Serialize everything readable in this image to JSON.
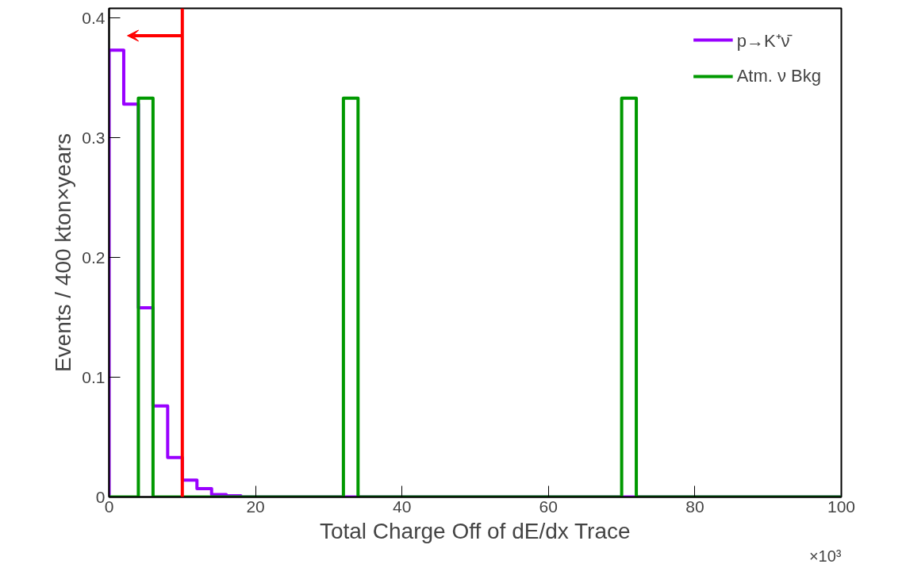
{
  "chart_data": {
    "type": "histogram",
    "xlabel": "Total Charge Off of dE/dx Trace",
    "ylabel": "Events / 400 kton×years",
    "bins": [
      0,
      2,
      4,
      6,
      8,
      10,
      12,
      14,
      16,
      18,
      20,
      22,
      24,
      26,
      28,
      30,
      32,
      34,
      36,
      38,
      40,
      42,
      44,
      46,
      48,
      50,
      52,
      54,
      56,
      58,
      60,
      62,
      64,
      66,
      68,
      70,
      72,
      74,
      76,
      78,
      80,
      82,
      84,
      86,
      88,
      90,
      92,
      94,
      96,
      98,
      100
    ],
    "series": [
      {
        "name": "p→K⁺ν̄",
        "color": "#9900ff",
        "values": [
          0.373,
          0.328,
          0.158,
          0.076,
          0.033,
          0.014,
          0.007,
          0.002,
          0.001,
          0,
          0,
          0,
          0,
          0,
          0,
          0,
          0,
          0,
          0,
          0,
          0,
          0,
          0,
          0,
          0,
          0,
          0,
          0,
          0,
          0,
          0,
          0,
          0,
          0,
          0,
          0,
          0,
          0,
          0,
          0,
          0,
          0,
          0,
          0,
          0,
          0,
          0,
          0,
          0,
          0
        ]
      },
      {
        "name": "Atm. ν Bkg",
        "color": "#009900",
        "values": [
          0,
          0,
          0.333,
          0,
          0,
          0,
          0,
          0,
          0,
          0,
          0,
          0,
          0,
          0,
          0,
          0,
          0.333,
          0,
          0,
          0,
          0,
          0,
          0,
          0,
          0,
          0,
          0,
          0,
          0,
          0,
          0,
          0,
          0,
          0,
          0,
          0.333,
          0,
          0,
          0,
          0,
          0,
          0,
          0,
          0,
          0,
          0,
          0,
          0,
          0,
          0
        ]
      }
    ],
    "xlim": [
      0,
      100
    ],
    "xticks": [
      0,
      20,
      40,
      60,
      80,
      100
    ],
    "ylim": [
      0,
      0.408
    ],
    "yticks": [
      0,
      0.1,
      0.2,
      0.3,
      0.4
    ],
    "ref_lines": [
      {
        "axis": "x",
        "value": 10,
        "color": "#ff0000"
      }
    ],
    "annotations": [
      "×10³"
    ],
    "legend": "top right",
    "grid": false
  }
}
